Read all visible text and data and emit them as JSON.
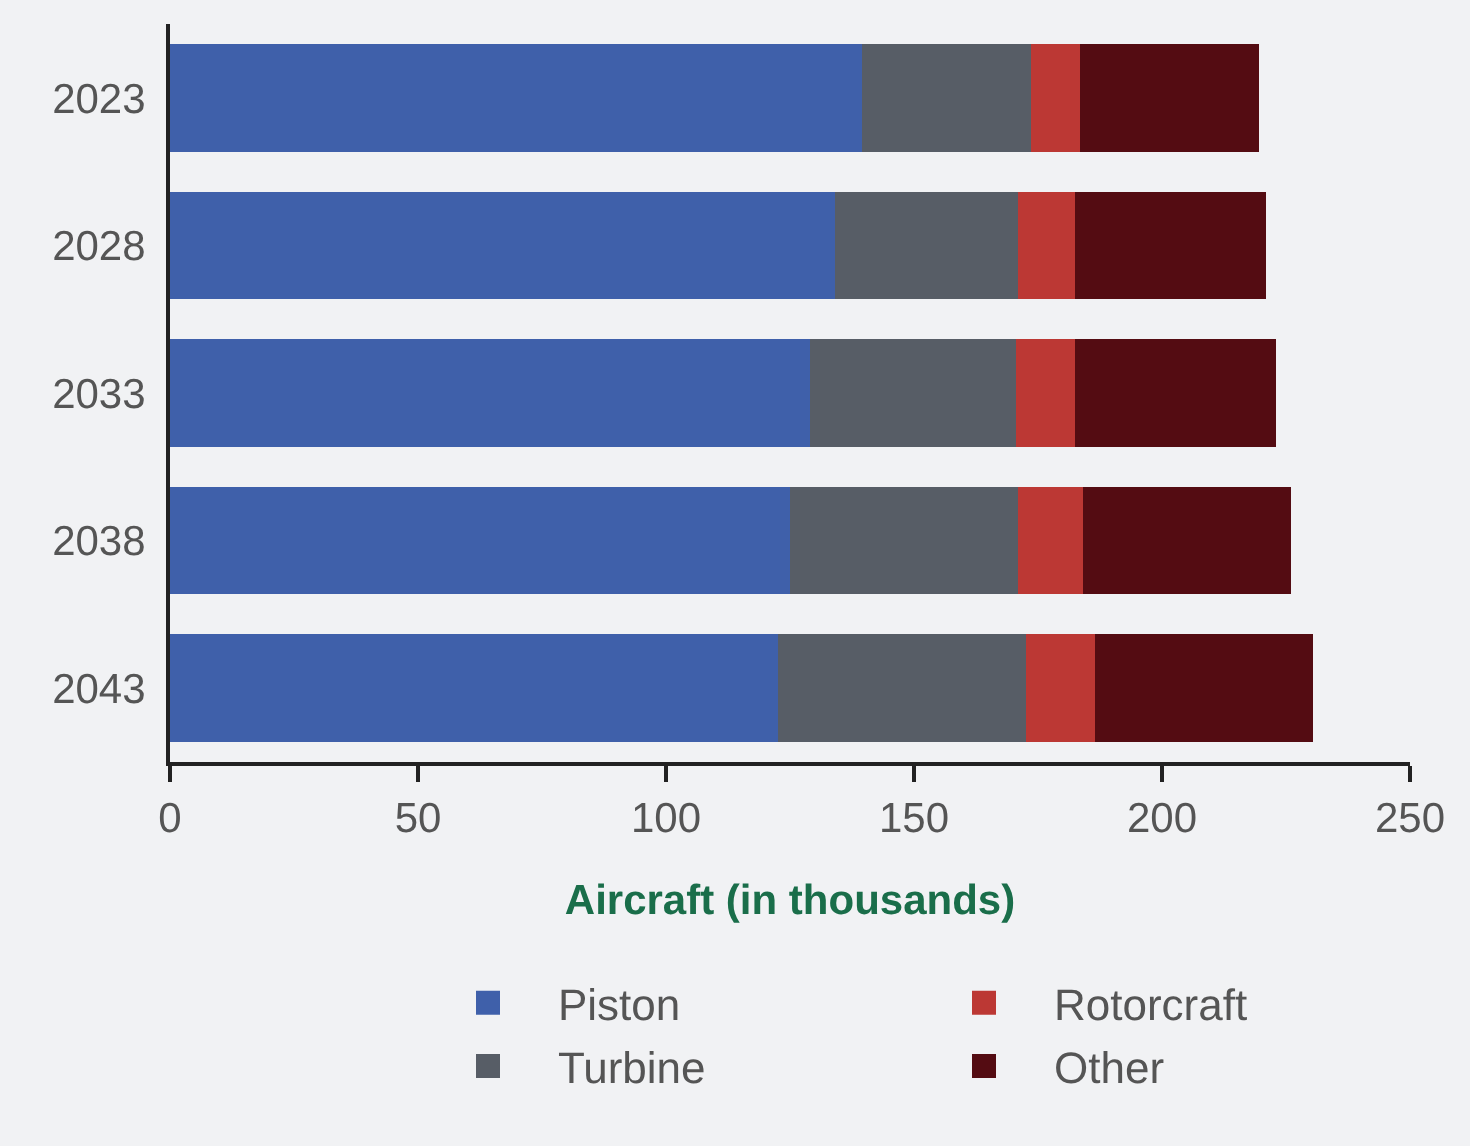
{
  "chart_data": {
    "type": "bar",
    "orientation": "horizontal",
    "stacked": true,
    "categories": [
      "2023",
      "2028",
      "2033",
      "2038",
      "2043"
    ],
    "series": [
      {
        "name": "Piston",
        "color": "#3f60aa",
        "values": [
          139.5,
          134,
          129,
          125,
          122.5
        ]
      },
      {
        "name": "Turbine",
        "color": "#575d66",
        "values": [
          34,
          37,
          41.5,
          46,
          50
        ]
      },
      {
        "name": "Rotorcraft",
        "color": "#bc3834",
        "values": [
          10,
          11.5,
          12,
          13,
          14
        ]
      },
      {
        "name": "Other",
        "color": "#540c12",
        "values": [
          36,
          38.5,
          40.5,
          42,
          44
        ]
      }
    ],
    "xlabel": "Aircraft (in thousands)",
    "xlim": [
      0,
      250
    ],
    "xticks": [
      0,
      50,
      100,
      150,
      200,
      250
    ],
    "grid": false,
    "legend": "bottom"
  }
}
